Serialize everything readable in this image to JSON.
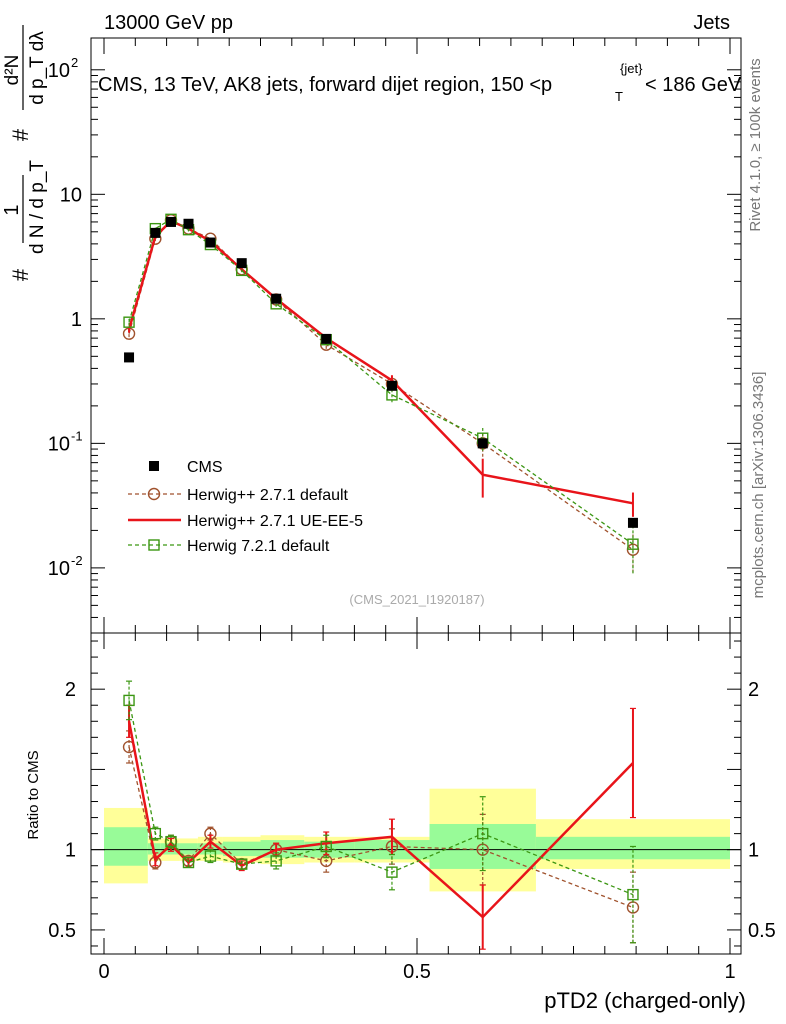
{
  "header": {
    "left": "13000 GeV pp",
    "right": "Jets"
  },
  "title": "CMS, 13 TeV, AK8 jets, forward dijet region, 150 <p_T^{jet}< 186 GeV",
  "title_parts": {
    "pre": "CMS, 13 TeV, AK8 jets, forward dijet region, 150 <p",
    "sub": "T",
    "sup": "{jet}",
    "post": "< 186 GeV"
  },
  "side_labels": {
    "rivet": "Rivet 4.1.0, ≥ 100k events",
    "mcplots": "mcplots.cern.ch [arXiv:1306.3436]"
  },
  "analysis_id": "(CMS_2021_I1920187)",
  "colors": {
    "data": "#000000",
    "herwig271_default": "#a0522d",
    "herwig271_ueee5": "#e8141a",
    "herwig721_default": "#3b9612",
    "band_inner": "#98fb98",
    "band_outer": "#ffff99"
  },
  "main_panel": {
    "ylabel": {
      "hash": "#",
      "one": "1",
      "frac_den": "d N / d p_T",
      "sub_T": "T",
      "num2": "d²N",
      "den2": "d p_T dλ"
    },
    "yticks": [
      {
        "value": 0.01,
        "label": "10",
        "exp": "-2"
      },
      {
        "value": 0.1,
        "label": "10",
        "exp": "-1"
      },
      {
        "value": 1,
        "label": "1",
        "exp": ""
      },
      {
        "value": 10,
        "label": "10",
        "exp": ""
      },
      {
        "value": 100,
        "label": "10",
        "exp": "2"
      }
    ]
  },
  "ratio_panel": {
    "ylabel": "Ratio to CMS",
    "yticks": [
      {
        "value": 0.5,
        "label": "0.5"
      },
      {
        "value": 1,
        "label": "1"
      },
      {
        "value": 2,
        "label": "2"
      }
    ]
  },
  "xaxis": {
    "label": "pTD2 (charged-only)",
    "ticks": [
      {
        "value": 0,
        "label": "0"
      },
      {
        "value": 0.5,
        "label": "0.5"
      },
      {
        "value": 1,
        "label": "1"
      }
    ]
  },
  "legend": [
    {
      "key": "cms",
      "label": "CMS"
    },
    {
      "key": "h271def",
      "label": "Herwig++ 2.7.1 default"
    },
    {
      "key": "h271ue",
      "label": "Herwig++ 2.7.1 UE-EE-5"
    },
    {
      "key": "h721",
      "label": "Herwig 7.2.1 default"
    }
  ],
  "chart_data": {
    "type": "line",
    "log_y": true,
    "xlim": [
      0,
      1
    ],
    "ylim": [
      0.003,
      180
    ],
    "ratio_ylim": [
      0.35,
      2.35
    ],
    "bin_edges": [
      0.0,
      0.07,
      0.09,
      0.12,
      0.15,
      0.19,
      0.25,
      0.32,
      0.4,
      0.52,
      0.69,
      1.0
    ],
    "x": [
      0.04,
      0.082,
      0.107,
      0.135,
      0.17,
      0.22,
      0.275,
      0.355,
      0.46,
      0.605,
      0.845
    ],
    "cms": {
      "name": "CMS",
      "values": [
        0.49,
        4.9,
        6.0,
        5.8,
        4.1,
        2.8,
        1.45,
        0.69,
        0.29,
        0.1,
        0.023
      ],
      "band_inner": [
        [
          0.9,
          1.14
        ],
        [
          0.97,
          1.04
        ],
        [
          0.97,
          1.04
        ],
        [
          0.97,
          1.04
        ],
        [
          0.97,
          1.04
        ],
        [
          0.96,
          1.05
        ],
        [
          0.95,
          1.06
        ],
        [
          0.95,
          1.05
        ],
        [
          0.94,
          1.06
        ],
        [
          0.88,
          1.16
        ],
        [
          0.94,
          1.08
        ]
      ],
      "band_outer": [
        [
          0.79,
          1.26
        ],
        [
          0.93,
          1.07
        ],
        [
          0.93,
          1.07
        ],
        [
          0.93,
          1.07
        ],
        [
          0.93,
          1.08
        ],
        [
          0.92,
          1.08
        ],
        [
          0.91,
          1.09
        ],
        [
          0.92,
          1.08
        ],
        [
          0.92,
          1.08
        ],
        [
          0.74,
          1.38
        ],
        [
          0.88,
          1.19
        ]
      ]
    },
    "series": [
      {
        "key": "h271def",
        "name": "Herwig++ 2.7.1 default",
        "marker": "circle",
        "dashed": true,
        "values": [
          0.76,
          4.4,
          6.2,
          5.3,
          4.4,
          2.5,
          1.43,
          0.62,
          0.3,
          0.1,
          0.014
        ],
        "ratio": [
          1.64,
          0.92,
          1.05,
          0.93,
          1.1,
          0.91,
          1.0,
          0.93,
          1.02,
          1.0,
          0.64
        ],
        "ratio_err": [
          0.1,
          0.04,
          0.04,
          0.03,
          0.04,
          0.03,
          0.04,
          0.07,
          0.11,
          0.22,
          0.22
        ]
      },
      {
        "key": "h271ue",
        "name": "Herwig++ 2.7.1 UE-EE-5",
        "marker": "none",
        "dashed": false,
        "values": [
          0.82,
          4.6,
          6.1,
          5.3,
          4.2,
          2.5,
          1.45,
          0.7,
          0.32,
          0.056,
          0.033
        ],
        "ratio": [
          1.8,
          0.94,
          1.03,
          0.92,
          1.05,
          0.9,
          1.0,
          1.04,
          1.08,
          0.58,
          1.54
        ],
        "ratio_err": [
          0.1,
          0.04,
          0.04,
          0.03,
          0.04,
          0.03,
          0.04,
          0.07,
          0.11,
          0.2,
          0.34
        ]
      },
      {
        "key": "h721",
        "name": "Herwig 7.2.1 default",
        "marker": "square",
        "dashed": true,
        "values": [
          0.94,
          5.3,
          6.3,
          5.2,
          3.95,
          2.45,
          1.32,
          0.68,
          0.245,
          0.11,
          0.0155
        ],
        "ratio": [
          1.93,
          1.1,
          1.05,
          0.92,
          0.96,
          0.91,
          0.93,
          1.02,
          0.86,
          1.1,
          0.72
        ],
        "ratio_err": [
          0.12,
          0.04,
          0.04,
          0.03,
          0.04,
          0.03,
          0.05,
          0.07,
          0.11,
          0.23,
          0.3
        ]
      }
    ]
  }
}
